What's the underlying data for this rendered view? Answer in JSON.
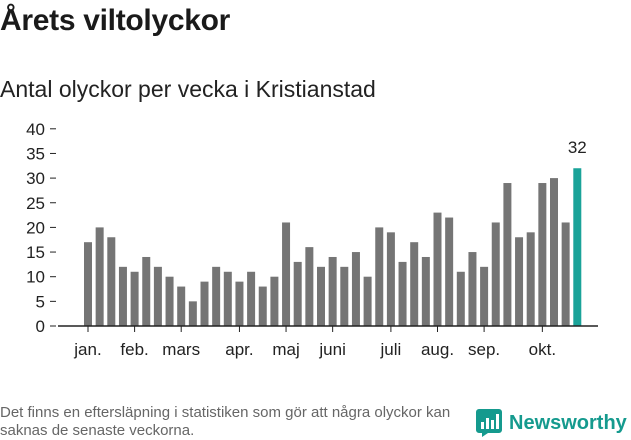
{
  "header": {
    "title": "Årets viltolyckor",
    "subtitle": "Antal olyckor per vecka i Kristianstad"
  },
  "chart_data": {
    "type": "bar",
    "title": "Årets viltolyckor",
    "subtitle": "Antal olyckor per vecka i Kristianstad",
    "xlabel": "",
    "ylabel": "",
    "ylim": [
      0,
      40
    ],
    "yticks": [
      0,
      5,
      10,
      15,
      20,
      25,
      30,
      35,
      40
    ],
    "grid": false,
    "values": [
      17,
      20,
      18,
      12,
      11,
      14,
      12,
      10,
      8,
      5,
      9,
      12,
      11,
      9,
      11,
      8,
      10,
      21,
      13,
      16,
      12,
      14,
      12,
      15,
      10,
      20,
      19,
      13,
      17,
      14,
      23,
      22,
      11,
      15,
      12,
      21,
      29,
      18,
      19,
      29,
      30,
      21,
      32
    ],
    "month_labels": [
      {
        "label": "jan.",
        "week": 0
      },
      {
        "label": "feb.",
        "week": 4
      },
      {
        "label": "mars",
        "week": 8
      },
      {
        "label": "apr.",
        "week": 13
      },
      {
        "label": "maj",
        "week": 17
      },
      {
        "label": "juni",
        "week": 21
      },
      {
        "label": "juli",
        "week": 26
      },
      {
        "label": "aug.",
        "week": 30
      },
      {
        "label": "sep.",
        "week": 34
      },
      {
        "label": "okt.",
        "week": 39
      }
    ],
    "highlight": {
      "index": 42,
      "value_label": "32"
    },
    "colors": {
      "bar": "#757575",
      "highlight": "#1aa399",
      "axis": "#222222"
    }
  },
  "footer": {
    "note": "Det finns en eftersläpning i statistiken som gör att några olyckor kan saknas de senaste veckorna.",
    "brand": "Newsworthy",
    "brand_color": "#159a8e",
    "brand_icon": "newsworthy-logo-icon"
  }
}
